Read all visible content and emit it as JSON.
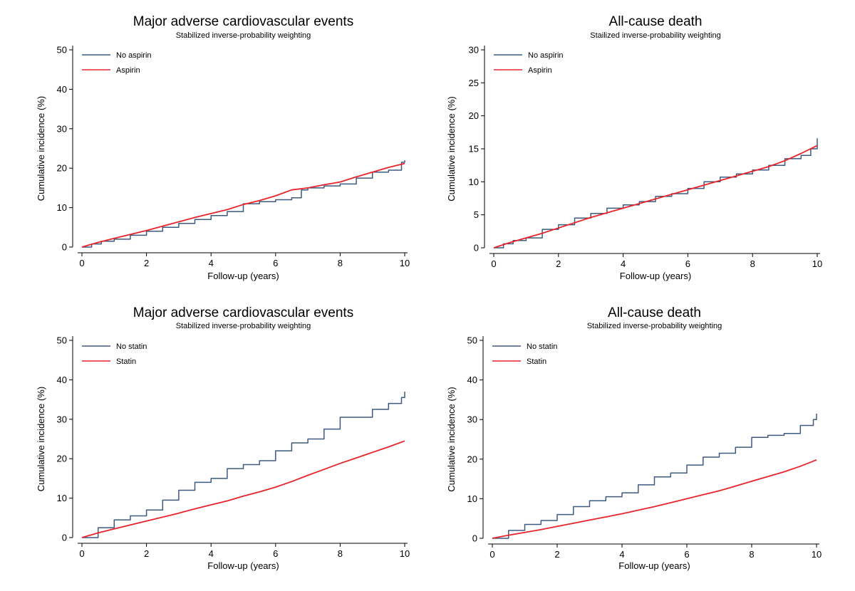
{
  "colors": {
    "series_a": "#3d5a80",
    "series_b": "#e8232a"
  },
  "chart_data": [
    {
      "type": "line",
      "title": "Major adverse cardiovascular events",
      "subtitle": "Stabilized inverse-probability weighting",
      "xlabel": "Follow-up (years)",
      "ylabel": "Cumulative incidence (%)",
      "xlim": [
        0,
        10
      ],
      "ylim": [
        0,
        50
      ],
      "xticks": [
        "0",
        "2",
        "4",
        "6",
        "8",
        "10"
      ],
      "yticks": [
        "0",
        "10",
        "20",
        "30",
        "40",
        "50"
      ],
      "grid": false,
      "legend_position": "top-left",
      "series": [
        {
          "name": "No aspirin",
          "color": "#3d5a80",
          "style": "step",
          "x": [
            0,
            0.3,
            0.6,
            1,
            1.5,
            2,
            2.5,
            3,
            3.5,
            4,
            4.5,
            5,
            5.5,
            6,
            6.5,
            6.8,
            7,
            7.5,
            8,
            8.5,
            9,
            9.5,
            9.9,
            10
          ],
          "y": [
            0,
            0.8,
            1.5,
            2,
            3,
            4,
            5,
            6,
            7,
            8,
            9,
            11,
            11.5,
            12,
            12.5,
            14.5,
            15,
            15.5,
            16,
            17.5,
            19,
            19.5,
            21.5,
            22
          ]
        },
        {
          "name": "Aspirin",
          "color": "#e8232a",
          "style": "smooth",
          "x": [
            0,
            0.5,
            1,
            1.5,
            2,
            2.5,
            3,
            3.5,
            4,
            4.5,
            5,
            5.5,
            6,
            6.5,
            7,
            7.5,
            8,
            8.5,
            9,
            9.5,
            10
          ],
          "y": [
            0,
            1.2,
            2.2,
            3.2,
            4.2,
            5.3,
            6.4,
            7.5,
            8.5,
            9.5,
            10.8,
            11.8,
            13,
            14.5,
            15,
            15.8,
            16.5,
            17.8,
            19,
            20.2,
            21.2
          ]
        }
      ]
    },
    {
      "type": "line",
      "title": "All-cause death",
      "subtitle": "Stailized inverse-probability weighting",
      "xlabel": "Follow-up (years)",
      "ylabel": "Cumulative incidence (%)",
      "xlim": [
        0,
        10
      ],
      "ylim": [
        0,
        30
      ],
      "xticks": [
        "0",
        "2",
        "4",
        "6",
        "8",
        "10"
      ],
      "yticks": [
        "0",
        "5",
        "10",
        "15",
        "20",
        "25",
        "30"
      ],
      "grid": false,
      "legend_position": "top-left",
      "series": [
        {
          "name": "No aspirin",
          "color": "#3d5a80",
          "style": "step",
          "x": [
            0,
            0.3,
            0.6,
            1,
            1.5,
            2,
            2.5,
            3,
            3.5,
            4,
            4.5,
            5,
            5.5,
            6,
            6.5,
            7,
            7.5,
            8,
            8.5,
            9,
            9.5,
            9.8,
            10
          ],
          "y": [
            0,
            0.6,
            1.1,
            1.5,
            2.8,
            3.5,
            4.5,
            5.2,
            6,
            6.5,
            7,
            7.8,
            8.2,
            9,
            10,
            10.7,
            11.2,
            11.8,
            12.5,
            13.5,
            14,
            15,
            16.6
          ]
        },
        {
          "name": "Aspirin",
          "color": "#e8232a",
          "style": "smooth",
          "x": [
            0,
            0.5,
            1,
            1.5,
            2,
            2.5,
            3,
            3.5,
            4,
            4.5,
            5,
            5.5,
            6,
            6.5,
            7,
            7.5,
            8,
            8.5,
            9,
            9.5,
            10
          ],
          "y": [
            0,
            0.8,
            1.5,
            2.2,
            3,
            3.8,
            4.6,
            5.3,
            6,
            6.7,
            7.4,
            8.1,
            8.8,
            9.5,
            10.2,
            10.9,
            11.6,
            12.3,
            13.2,
            14.3,
            15.5
          ]
        }
      ]
    },
    {
      "type": "line",
      "title": "Major adverse cardiovascular events",
      "subtitle": "Stabilized inverse-probability weighting",
      "xlabel": "Follow-up (years)",
      "ylabel": "Cumulative incidence (%)",
      "xlim": [
        0,
        10
      ],
      "ylim": [
        0,
        50
      ],
      "xticks": [
        "0",
        "2",
        "4",
        "6",
        "8",
        "10"
      ],
      "yticks": [
        "0",
        "10",
        "20",
        "30",
        "40",
        "50"
      ],
      "grid": false,
      "legend_position": "top-left",
      "series": [
        {
          "name": "No statin",
          "color": "#3d5a80",
          "style": "step",
          "x": [
            0,
            0.5,
            1,
            1.5,
            2,
            2.5,
            3,
            3.5,
            4,
            4.5,
            5,
            5.5,
            6,
            6.5,
            7,
            7.5,
            8,
            8.5,
            9,
            9.5,
            9.9,
            10
          ],
          "y": [
            0,
            2.5,
            4.5,
            5.5,
            7,
            9.5,
            12,
            14,
            15,
            17.5,
            18.5,
            19.5,
            22,
            24,
            25,
            27.5,
            30.5,
            30.5,
            32.5,
            34,
            35.5,
            37
          ]
        },
        {
          "name": "Statin",
          "color": "#e8232a",
          "style": "smooth",
          "x": [
            0,
            0.5,
            1,
            1.5,
            2,
            2.5,
            3,
            3.5,
            4,
            4.5,
            5,
            5.5,
            6,
            6.5,
            7,
            7.5,
            8,
            8.5,
            9,
            9.5,
            10
          ],
          "y": [
            0,
            1.2,
            2.2,
            3.2,
            4.2,
            5.2,
            6.2,
            7.3,
            8.3,
            9.3,
            10.5,
            11.6,
            12.8,
            14.2,
            15.8,
            17.3,
            18.8,
            20.2,
            21.6,
            23,
            24.5
          ]
        }
      ]
    },
    {
      "type": "line",
      "title": "All-cause death",
      "subtitle": "Stabilized inverse-probability weighting",
      "xlabel": "Follow-up (years)",
      "ylabel": "Cumulative incidence (%)",
      "xlim": [
        0,
        10
      ],
      "ylim": [
        0,
        50
      ],
      "xticks": [
        "0",
        "2",
        "4",
        "6",
        "8",
        "10"
      ],
      "yticks": [
        "0",
        "10",
        "20",
        "30",
        "40",
        "50"
      ],
      "grid": false,
      "legend_position": "top-left",
      "series": [
        {
          "name": "No statin",
          "color": "#3d5a80",
          "style": "step",
          "x": [
            0,
            0.5,
            1,
            1.5,
            2,
            2.5,
            3,
            3.5,
            4,
            4.5,
            5,
            5.5,
            6,
            6.5,
            7,
            7.5,
            8,
            8.5,
            9,
            9.5,
            9.9,
            10
          ],
          "y": [
            0,
            2,
            3.5,
            4.5,
            6,
            8,
            9.5,
            10.5,
            11.5,
            13.5,
            15.5,
            16.5,
            18.5,
            20.5,
            21.5,
            23,
            25.5,
            26,
            26.5,
            28.5,
            30,
            31.5
          ]
        },
        {
          "name": "Statin",
          "color": "#e8232a",
          "style": "smooth",
          "x": [
            0,
            0.5,
            1,
            1.5,
            2,
            2.5,
            3,
            3.5,
            4,
            4.5,
            5,
            5.5,
            6,
            6.5,
            7,
            7.5,
            8,
            8.5,
            9,
            9.5,
            10
          ],
          "y": [
            0,
            0.8,
            1.5,
            2.2,
            3,
            3.8,
            4.6,
            5.4,
            6.2,
            7.1,
            8,
            9,
            10,
            11,
            12,
            13.2,
            14.4,
            15.6,
            16.8,
            18.2,
            19.8
          ]
        }
      ]
    }
  ]
}
